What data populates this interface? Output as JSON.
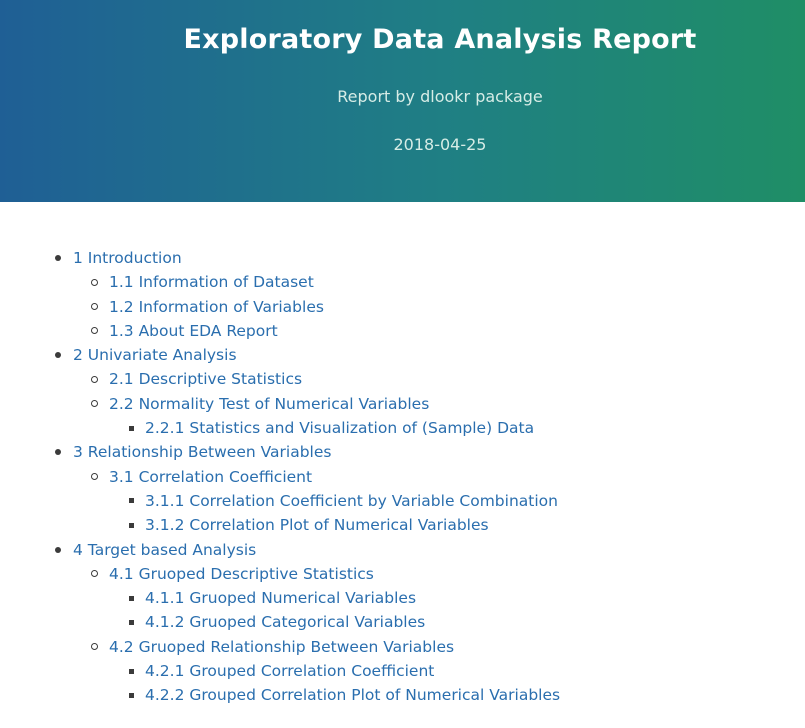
{
  "header": {
    "title": "Exploratory Data Analysis Report",
    "subtitle": "Report by dlookr package",
    "date": "2018-04-25"
  },
  "toc": {
    "items": [
      {
        "level": 1,
        "label": "1 Introduction"
      },
      {
        "level": 2,
        "label": "1.1 Information of Dataset"
      },
      {
        "level": 2,
        "label": "1.2 Information of Variables"
      },
      {
        "level": 2,
        "label": "1.3 About EDA Report"
      },
      {
        "level": 1,
        "label": "2 Univariate Analysis"
      },
      {
        "level": 2,
        "label": "2.1 Descriptive Statistics"
      },
      {
        "level": 2,
        "label": "2.2 Normality Test of Numerical Variables"
      },
      {
        "level": 3,
        "label": "2.2.1 Statistics and Visualization of (Sample) Data"
      },
      {
        "level": 1,
        "label": "3 Relationship Between Variables"
      },
      {
        "level": 2,
        "label": "3.1 Correlation Coefficient"
      },
      {
        "level": 3,
        "label": "3.1.1 Correlation Coefficient by Variable Combination"
      },
      {
        "level": 3,
        "label": "3.1.2 Correlation Plot of Numerical Variables"
      },
      {
        "level": 1,
        "label": "4 Target based Analysis"
      },
      {
        "level": 2,
        "label": "4.1 Gruoped Descriptive Statistics"
      },
      {
        "level": 3,
        "label": "4.1.1 Gruoped Numerical Variables"
      },
      {
        "level": 3,
        "label": "4.1.2 Gruoped Categorical Variables"
      },
      {
        "level": 2,
        "label": "4.2 Gruoped Relationship Between Variables"
      },
      {
        "level": 3,
        "label": "4.2.1 Grouped Correlation Coefficient"
      },
      {
        "level": 3,
        "label": "4.2.2 Grouped Correlation Plot of Numerical Variables"
      }
    ]
  },
  "colors": {
    "header_left": "#1f5f95",
    "header_right": "#1f8e66",
    "link": "#2a6eae",
    "bullet": "#3b3b3b"
  }
}
